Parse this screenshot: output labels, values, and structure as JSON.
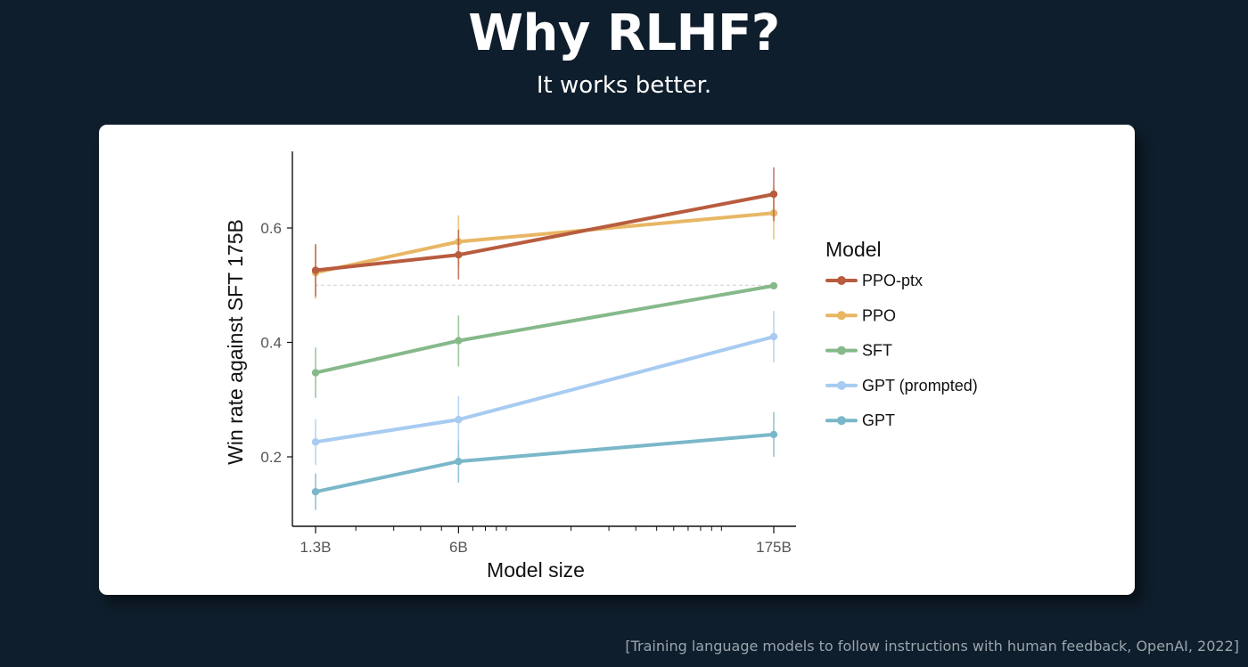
{
  "slide": {
    "title": "Why RLHF?",
    "subtitle": "It works better.",
    "citation": "[Training language models to follow instructions with human feedback, OpenAI, 2022]"
  },
  "chart_data": {
    "type": "line",
    "xlabel": "Model size",
    "ylabel": "Win rate against SFT 175B",
    "x_scale": "log",
    "x_unit": "billion parameters",
    "x": [
      1.3,
      6,
      175
    ],
    "x_tick_labels": [
      "1.3B",
      "6B",
      "175B"
    ],
    "ylim": [
      0.07,
      0.72
    ],
    "y_ticks": [
      0.2,
      0.4,
      0.6
    ],
    "y_tick_labels": [
      "0.2",
      "0.4",
      "0.6"
    ],
    "reference_line": 0.5,
    "grid": false,
    "legend_title": "Model",
    "legend_position": "right",
    "series": [
      {
        "name": "PPO-ptx",
        "color": "#b85c3f",
        "values": [
          0.526,
          0.553,
          0.659
        ],
        "err_low": [
          0.48,
          0.51,
          0.612
        ],
        "err_high": [
          0.572,
          0.597,
          0.706
        ]
      },
      {
        "name": "PPO",
        "color": "#e8b764",
        "values": [
          0.522,
          0.576,
          0.626
        ],
        "err_low": [
          0.476,
          0.53,
          0.58
        ],
        "err_high": [
          0.568,
          0.622,
          0.672
        ]
      },
      {
        "name": "SFT",
        "color": "#86b98a",
        "values": [
          0.347,
          0.403,
          0.499
        ],
        "err_low": [
          0.303,
          0.358,
          0.499
        ],
        "err_high": [
          0.391,
          0.447,
          0.499
        ]
      },
      {
        "name": "GPT (prompted)",
        "color": "#a7cbf1",
        "values": [
          0.226,
          0.265,
          0.41
        ],
        "err_low": [
          0.186,
          0.224,
          0.365
        ],
        "err_high": [
          0.266,
          0.306,
          0.455
        ]
      },
      {
        "name": "GPT",
        "color": "#7ab7c9",
        "values": [
          0.139,
          0.192,
          0.239
        ],
        "err_low": [
          0.107,
          0.155,
          0.2
        ],
        "err_high": [
          0.171,
          0.229,
          0.278
        ]
      }
    ]
  }
}
